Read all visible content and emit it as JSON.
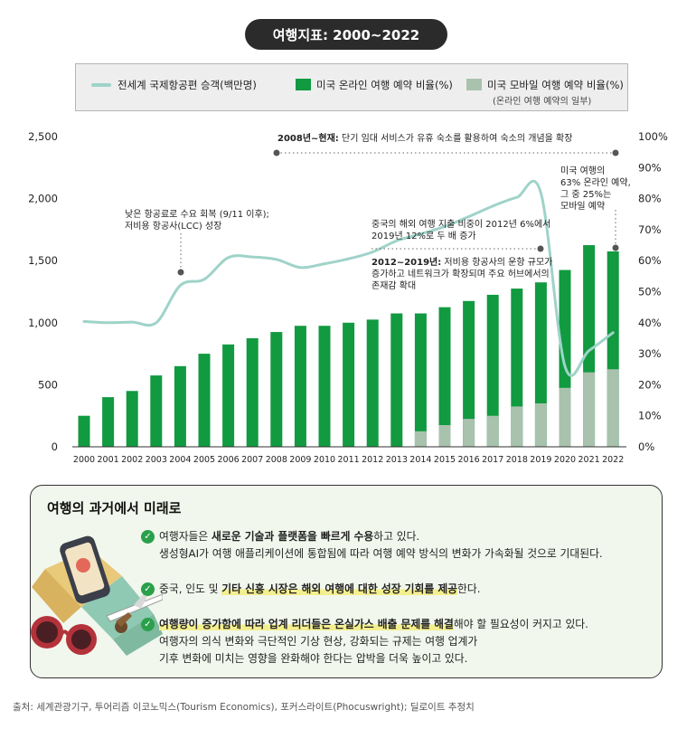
{
  "header": {
    "title": "여행지표: 2000~2022"
  },
  "legend": {
    "line_label": "전세계 국제항공편 승객(백만명)",
    "green_label": "미국 온라인 여행 예약 비율(%)",
    "grey_label": "미국 모바일 여행 예약 비율(%)",
    "grey_sub": "(온라인 여행 예약의 일부)"
  },
  "colors": {
    "green": "#119a40",
    "grey": "#a9c2ae",
    "line": "#9fd3c9",
    "dot": "#555555"
  },
  "chart_data": {
    "type": "bar",
    "categories": [
      "2000",
      "2001",
      "2002",
      "2003",
      "2004",
      "2005",
      "2006",
      "2007",
      "2008",
      "2009",
      "2010",
      "2011",
      "2012",
      "2013",
      "2014",
      "2015",
      "2016",
      "2017",
      "2018",
      "2019",
      "2020",
      "2021",
      "2022"
    ],
    "series": [
      {
        "name": "미국 온라인 여행 예약 비율(%)",
        "type": "bar",
        "values": [
          10,
          16,
          18,
          23,
          26,
          30,
          33,
          35,
          37,
          39,
          39,
          40,
          41,
          43,
          43,
          45,
          47,
          49,
          51,
          53,
          57,
          65,
          63
        ]
      },
      {
        "name": "미국 모바일 여행 예약 비율(%)",
        "type": "bar",
        "overlay": true,
        "values": [
          null,
          null,
          null,
          null,
          null,
          null,
          null,
          null,
          null,
          null,
          null,
          null,
          null,
          null,
          5,
          7,
          9,
          10,
          13,
          14,
          19,
          24,
          25
        ]
      },
      {
        "name": "전세계 국제항공편 승객(백만명)",
        "type": "line",
        "axis": "left",
        "values": [
          1010,
          1000,
          1005,
          1000,
          1300,
          1350,
          1525,
          1530,
          1510,
          1445,
          1475,
          1515,
          1570,
          1660,
          1715,
          1775,
          1855,
          1940,
          2010,
          2045,
          650,
          775,
          920
        ]
      }
    ],
    "y_left": {
      "ylim": [
        0,
        2500
      ],
      "ticks": [
        "0",
        "500",
        "1,000",
        "1,500",
        "2,000",
        "2,500"
      ]
    },
    "y_right": {
      "ylim": [
        0,
        100
      ],
      "ticks": [
        "0%",
        "10%",
        "20%",
        "30%",
        "40%",
        "50%",
        "60%",
        "70%",
        "80%",
        "90%",
        "100%"
      ]
    },
    "annotations": [
      {
        "lines": [
          "낮은 항공료로 수요 회복 (9/11 이후);",
          "저비용 항공사(LCC) 성장"
        ]
      },
      {
        "bold": "2008년~현재:",
        "text": " 단기 임대 서비스가 유휴 숙소를 활용하여 숙소의 개념을 확장"
      },
      {
        "lines": [
          "중국의 해외 여행 지출 비중이 2012년 6%에서",
          "2019년 12%로 두 배 증가"
        ]
      },
      {
        "bold": "2012~2019년:",
        "text": " 저비용 항공사의 운항 규모가",
        "lines": [
          "증가하고 네트워크가 확장되며 주요 허브에서의",
          "존재감 확대"
        ]
      },
      {
        "lines": [
          "미국 여행의",
          "63% 온라인 예약,",
          "그 중 25%는",
          "모바일 예약"
        ]
      }
    ],
    "grid": false,
    "legend_position": "top"
  },
  "panel": {
    "title": "여행의 과거에서 미래로",
    "b1_pre": "여행자들은 ",
    "b1_hl": "새로운 기술과 플랫폼을 빠르게 수용",
    "b1_post": "하고 있다.",
    "b1_line2": "생성형AI가 여행 애플리케이션에 통합됨에 따라 여행 예약 방식의 변화가 가속화될 것으로 기대된다.",
    "b2_pre": "중국, 인도 및 ",
    "b2_hl": "기타 신흥 시장은 해외 여행에 대한 성장 기회를 제공",
    "b2_post": "한다.",
    "b3_hl": "여행량이 증가함에 따라 업계 리더들은 온실가스 배출 문제를 해결",
    "b3_post": "해야 할 필요성이 커지고 있다.",
    "b3_line2": "여행자의 의식 변화와 극단적인 기상 현상, 강화되는 규제는 여행 업계가",
    "b3_line3": "기후 변화에 미치는 영향을 완화해야 한다는 압박을 더욱 높이고 있다."
  },
  "source": "출처: 세계관광기구, 투어리즘 이코노믹스(Tourism Economics), 포커스라이트(Phocuswright); 딜로이트 추정치"
}
